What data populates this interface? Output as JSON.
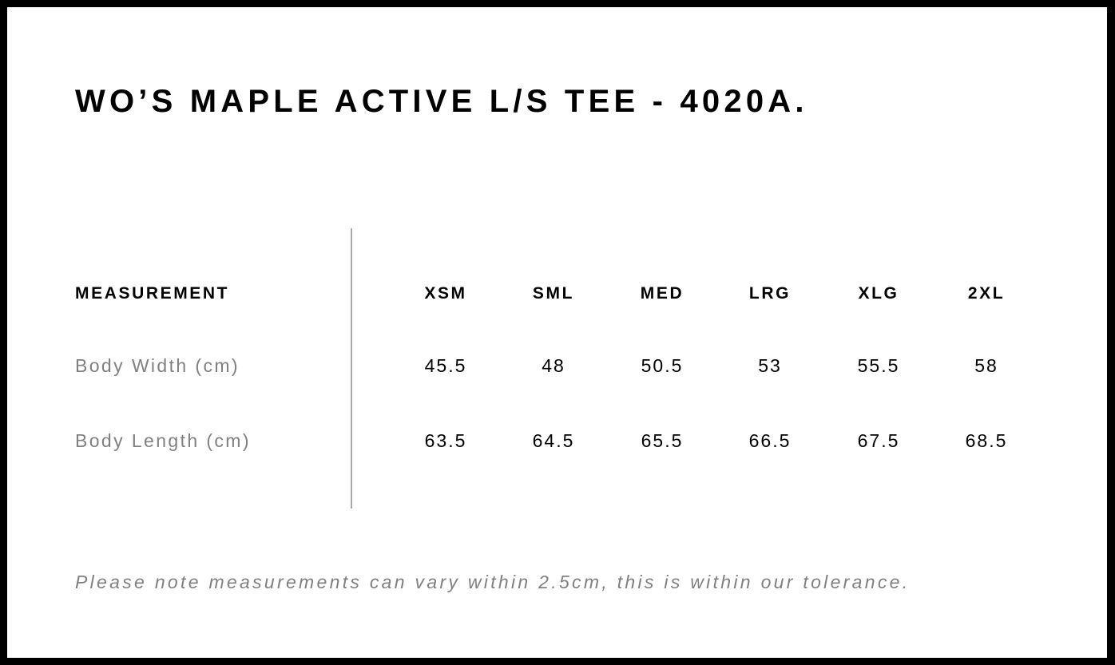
{
  "title": "WO’S MAPLE ACTIVE L/S TEE - 4020A.",
  "table": {
    "header_label": "MEASUREMENT",
    "sizes": [
      "XSM",
      "SML",
      "MED",
      "LRG",
      "XLG",
      "2XL"
    ],
    "rows": [
      {
        "label": "Body Width (cm)",
        "values": [
          "45.5",
          "48",
          "50.5",
          "53",
          "55.5",
          "58"
        ]
      },
      {
        "label": "Body Length (cm)",
        "values": [
          "63.5",
          "64.5",
          "65.5",
          "66.5",
          "67.5",
          "68.5"
        ]
      }
    ]
  },
  "note": "Please note measurements can vary within 2.5cm, this is within our tolerance."
}
